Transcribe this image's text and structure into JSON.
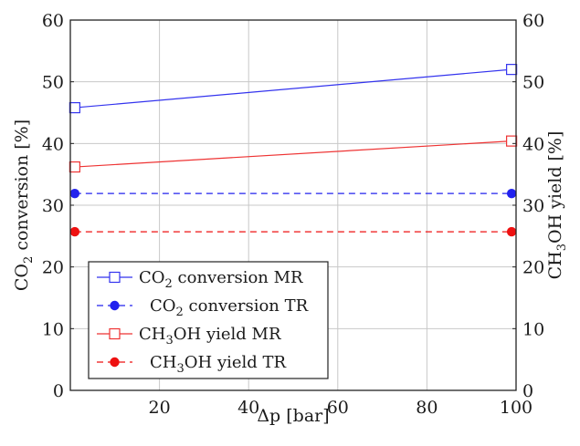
{
  "chart_data": {
    "type": "line",
    "xlabel": "Δp [bar]",
    "ylabel_left": {
      "main": "CO",
      "sub": "2",
      "rest": " conversion [%]"
    },
    "ylabel_right": {
      "a": "CH",
      "sub": "3",
      "b": "OH yield [%]"
    },
    "xlim": [
      0,
      100
    ],
    "ylim": [
      0,
      60
    ],
    "x_ticks": [
      20,
      40,
      60,
      80,
      100
    ],
    "y_ticks": [
      0,
      10,
      20,
      30,
      40,
      50,
      60
    ],
    "grid": true,
    "legend_position": "bottom-left",
    "series": [
      {
        "name": "CO2 conversion MR",
        "parts": {
          "a": "CO",
          "sub": "2",
          "b": " conversion MR"
        },
        "x": [
          1,
          99
        ],
        "y": [
          45.8,
          52.0
        ],
        "color": "#3333ee",
        "dash": false,
        "marker": "square-open"
      },
      {
        "name": "CO2 conversion TR",
        "parts": {
          "a": "CO",
          "sub": "2",
          "b": " conversion TR"
        },
        "x": [
          1,
          99
        ],
        "y": [
          31.9,
          31.9
        ],
        "color": "#2222ee",
        "dash": true,
        "marker": "circle-filled"
      },
      {
        "name": "CH3OH yield MR",
        "parts": {
          "a": "CH",
          "sub": "3",
          "b": "OH yield MR"
        },
        "x": [
          1,
          99
        ],
        "y": [
          36.2,
          40.4
        ],
        "color": "#ee3333",
        "dash": false,
        "marker": "square-open"
      },
      {
        "name": "CH3OH yield TR",
        "parts": {
          "a": "CH",
          "sub": "3",
          "b": "OH yield TR"
        },
        "x": [
          1,
          99
        ],
        "y": [
          25.7,
          25.7
        ],
        "color": "#ee1111",
        "dash": true,
        "marker": "circle-filled"
      }
    ]
  }
}
